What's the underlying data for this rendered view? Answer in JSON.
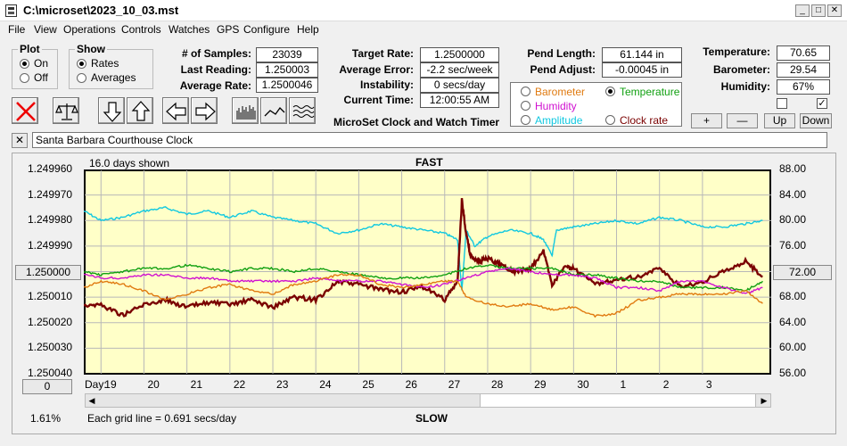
{
  "window": {
    "title": "C:\\microset\\2023_10_03.mst"
  },
  "menu": [
    "File",
    "View",
    "Operations",
    "Controls",
    "Watches",
    "GPS",
    "Configure",
    "Help"
  ],
  "plot_group": {
    "title": "Plot",
    "options": [
      "On",
      "Off"
    ],
    "selected": "On"
  },
  "show_group": {
    "title": "Show",
    "options": [
      "Rates",
      "Averages"
    ],
    "selected": "Rates"
  },
  "stats": {
    "samples_label": "# of Samples:",
    "samples_value": "23039",
    "last_reading_label": "Last Reading:",
    "last_reading_value": "1.250003",
    "avg_rate_label": "Average Rate:",
    "avg_rate_value": "1.2500046"
  },
  "rates": {
    "target_label": "Target Rate:",
    "target_value": "1.2500000",
    "avg_error_label": "Average Error:",
    "avg_error_value": "-2.2 sec/week",
    "instability_label": "Instability:",
    "instability_value": "0 secs/day",
    "current_time_label": "Current Time:",
    "current_time_value": "12:00:55 AM"
  },
  "app_name": "MicroSet Clock and Watch Timer",
  "pendulum": {
    "length_label": "Pend Length:",
    "length_value": "61.144 in",
    "adjust_label": "Pend Adjust:",
    "adjust_value": "-0.00045 in"
  },
  "sensor_options": [
    {
      "label": "Barometer",
      "color": "#e07a10",
      "selected": false
    },
    {
      "label": "Temperature",
      "color": "#11a011",
      "selected": true
    },
    {
      "label": "Humidity",
      "color": "#d010d0",
      "selected": false
    },
    {
      "label": "Amplitude",
      "color": "#10c8e0",
      "selected": false
    },
    {
      "label": "Clock rate",
      "color": "#7a0000",
      "selected": false
    }
  ],
  "environment": {
    "temperature_label": "Temperature:",
    "temperature_value": "70.65",
    "barometer_label": "Barometer:",
    "barometer_value": "29.54",
    "humidity_label": "Humidity:",
    "humidity_value": "67%"
  },
  "adjust_buttons": [
    "+",
    "—",
    "Up",
    "Down"
  ],
  "clock_name": "Santa Barbara Courthouse Clock",
  "chart_header": {
    "days_shown": "16.0 days shown",
    "fast_label": "FAST",
    "slow_label": "SLOW",
    "grid_note": "Each grid line = 0.691 secs/day",
    "percent": "1.61%",
    "day_label": "Day:"
  },
  "left_buttons": {
    "center": "1.250000",
    "bottom": "0"
  },
  "right_button": "72.00",
  "chart_data": {
    "type": "line",
    "x_label": "Day",
    "x_ticks": [
      "19",
      "20",
      "21",
      "22",
      "23",
      "24",
      "25",
      "26",
      "27",
      "28",
      "29",
      "30",
      "1",
      "2",
      "3"
    ],
    "x_range": [
      18.6,
      34.6
    ],
    "y_left_ticks": [
      "1.249960",
      "1.249970",
      "1.249980",
      "1.249990",
      "1.250000",
      "1.250010",
      "1.250020",
      "1.250030",
      "1.250040"
    ],
    "y_left_range": [
      1.24996,
      1.25004
    ],
    "y_right_ticks": [
      "88.00",
      "84.00",
      "80.00",
      "76.00",
      "72.00",
      "68.00",
      "64.00",
      "60.00",
      "56.00"
    ],
    "y_right_range": [
      56,
      88
    ],
    "grid": true,
    "series": [
      {
        "name": "Amplitude",
        "color": "#10c8e0",
        "x": [
          18.6,
          19.0,
          19.5,
          20.0,
          20.5,
          21.0,
          21.5,
          22.0,
          22.5,
          23.0,
          23.5,
          24.0,
          24.5,
          25.0,
          25.5,
          26.0,
          26.5,
          27.0,
          27.3,
          27.4,
          27.5,
          27.7,
          28.0,
          28.5,
          29.0,
          29.3,
          29.5,
          29.6,
          30.0,
          30.5,
          31.0,
          31.5,
          32.0,
          32.5,
          33.0,
          33.5,
          34.0,
          34.4
        ],
        "y": [
          81.5,
          80.0,
          80.5,
          81.5,
          82.0,
          81.0,
          81.5,
          80.5,
          81.5,
          80.5,
          80.0,
          79.5,
          78.0,
          78.5,
          79.5,
          79.0,
          78.5,
          78.0,
          77.0,
          69.0,
          78.5,
          76.0,
          77.5,
          78.5,
          78.0,
          77.0,
          74.5,
          78.5,
          79.0,
          79.5,
          80.0,
          79.5,
          80.5,
          80.0,
          79.0,
          79.0,
          79.5,
          80.0
        ]
      },
      {
        "name": "Clock rate",
        "color": "#7a0000",
        "x": [
          18.6,
          19.0,
          19.5,
          20.0,
          20.5,
          21.0,
          21.5,
          22.0,
          22.5,
          23.0,
          23.5,
          24.0,
          24.5,
          25.0,
          25.5,
          26.0,
          26.5,
          27.0,
          27.3,
          27.4,
          27.5,
          27.6,
          27.8,
          28.0,
          28.3,
          28.6,
          29.0,
          29.3,
          29.5,
          29.8,
          30.0,
          30.5,
          31.0,
          31.5,
          32.0,
          32.5,
          33.0,
          33.5,
          34.0,
          34.4
        ],
        "y": [
          1.250013,
          1.250013,
          1.250017,
          1.250013,
          1.250011,
          1.250014,
          1.250012,
          1.250013,
          1.250011,
          1.250014,
          1.25001,
          1.250011,
          1.250004,
          1.250005,
          1.250007,
          1.250008,
          1.250006,
          1.250011,
          1.250004,
          1.249972,
          1.249985,
          1.249994,
          1.249996,
          1.249995,
          1.249997,
          1.25,
          1.249999,
          1.249992,
          1.250005,
          1.249998,
          1.249999,
          1.250005,
          1.250003,
          1.250002,
          1.249999,
          1.250006,
          1.250004,
          1.25,
          1.249996,
          1.250002
        ]
      },
      {
        "name": "Temperature",
        "color": "#11a011",
        "x": [
          18.6,
          19.0,
          19.5,
          20.0,
          20.5,
          21.0,
          21.5,
          22.0,
          22.5,
          23.0,
          23.5,
          24.0,
          24.5,
          25.0,
          25.5,
          26.0,
          26.5,
          27.0,
          27.5,
          28.0,
          28.5,
          29.0,
          29.5,
          30.0,
          30.5,
          31.0,
          31.5,
          32.0,
          32.5,
          33.0,
          33.5,
          34.0,
          34.4
        ],
        "y": [
          72.0,
          71.5,
          72.0,
          72.5,
          72.5,
          73.0,
          72.5,
          72.0,
          72.5,
          72.5,
          72.0,
          72.5,
          72.0,
          71.5,
          71.0,
          71.0,
          71.0,
          71.5,
          72.5,
          73.0,
          72.5,
          72.5,
          72.5,
          71.5,
          71.5,
          71.0,
          70.5,
          70.5,
          69.5,
          69.5,
          69.5,
          69.0,
          70.5
        ]
      },
      {
        "name": "Humidity",
        "color": "#d010d0",
        "x": [
          18.6,
          19.0,
          19.5,
          20.0,
          20.5,
          21.0,
          21.5,
          22.0,
          22.5,
          23.0,
          23.5,
          24.0,
          24.5,
          25.0,
          25.5,
          26.0,
          26.5,
          27.0,
          27.5,
          28.0,
          28.5,
          29.0,
          29.5,
          30.0,
          30.5,
          31.0,
          31.5,
          32.0,
          32.5,
          33.0,
          33.5,
          34.0,
          34.4
        ],
        "y": [
          71.5,
          71.0,
          71.0,
          71.5,
          71.5,
          71.0,
          71.0,
          70.5,
          70.5,
          70.5,
          70.5,
          71.0,
          70.5,
          70.5,
          70.5,
          70.0,
          69.5,
          70.0,
          71.0,
          72.0,
          72.5,
          72.0,
          71.5,
          71.5,
          71.0,
          69.5,
          69.5,
          69.0,
          70.5,
          70.5,
          69.5,
          68.5,
          69.5
        ]
      },
      {
        "name": "Barometer",
        "color": "#e07a10",
        "x": [
          18.6,
          19.0,
          19.5,
          20.0,
          20.5,
          21.0,
          21.5,
          22.0,
          22.5,
          23.0,
          23.5,
          24.0,
          24.5,
          25.0,
          25.5,
          26.0,
          26.5,
          27.0,
          27.3,
          27.5,
          28.0,
          28.5,
          29.0,
          29.5,
          30.0,
          30.5,
          31.0,
          31.5,
          32.0,
          32.5,
          33.0,
          33.5,
          34.0,
          34.4
        ],
        "y": [
          69.5,
          70.5,
          70.0,
          69.0,
          67.5,
          68.5,
          69.5,
          70.0,
          69.0,
          68.5,
          70.0,
          70.5,
          71.5,
          71.5,
          70.0,
          69.5,
          70.0,
          70.5,
          70.5,
          68.0,
          67.0,
          66.5,
          67.0,
          66.0,
          66.5,
          65.0,
          65.5,
          67.5,
          68.0,
          68.5,
          68.5,
          68.5,
          69.0,
          67.0
        ]
      }
    ]
  }
}
